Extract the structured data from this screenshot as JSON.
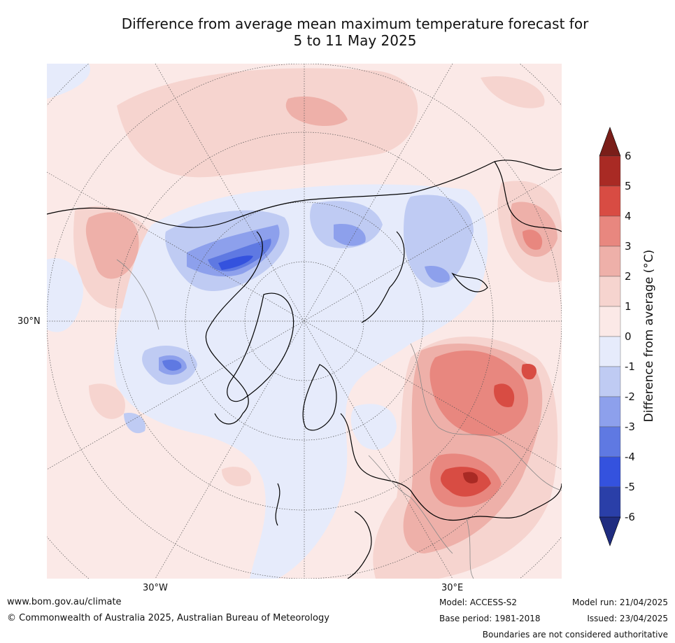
{
  "title": {
    "line1": "Difference from average mean maximum temperature forecast for",
    "line2": "5 to 11 May 2025"
  },
  "map": {
    "projection": "north-polar-stereographic",
    "lat_labels": [
      "30°N"
    ],
    "lon_labels": [
      "30°W",
      "30°E"
    ]
  },
  "colorbar": {
    "label": "Difference from average (°C)",
    "ticks": [
      "6",
      "5",
      "4",
      "3",
      "2",
      "1",
      "0",
      "-1",
      "-2",
      "-3",
      "-4",
      "-5",
      "-6"
    ],
    "colors": {
      "over": "#7a1e19",
      "5_6": "#a92a24",
      "4_5": "#d84c43",
      "3_4": "#e8877f",
      "2_3": "#eeb0a9",
      "1_2": "#f6d4cf",
      "0_1": "#fbe9e7",
      "m1_0": "#e6ebfb",
      "m2_m1": "#bfcbf3",
      "m3_m2": "#8da0ec",
      "m4_m3": "#5f79e2",
      "m5_m4": "#3452de",
      "m6_m5": "#2a3fa8",
      "under": "#1f2c80"
    }
  },
  "footer": {
    "url": "www.bom.gov.au/climate",
    "copyright": "© Commonwealth of Australia 2025, Australian Bureau of Meteorology",
    "model": "Model: ACCESS-S2",
    "base_period": "Base period: 1981-2018",
    "model_run": "Model run: 21/04/2025",
    "issued": "Issued: 23/04/2025",
    "disclaimer": "Boundaries are not considered authoritative"
  }
}
